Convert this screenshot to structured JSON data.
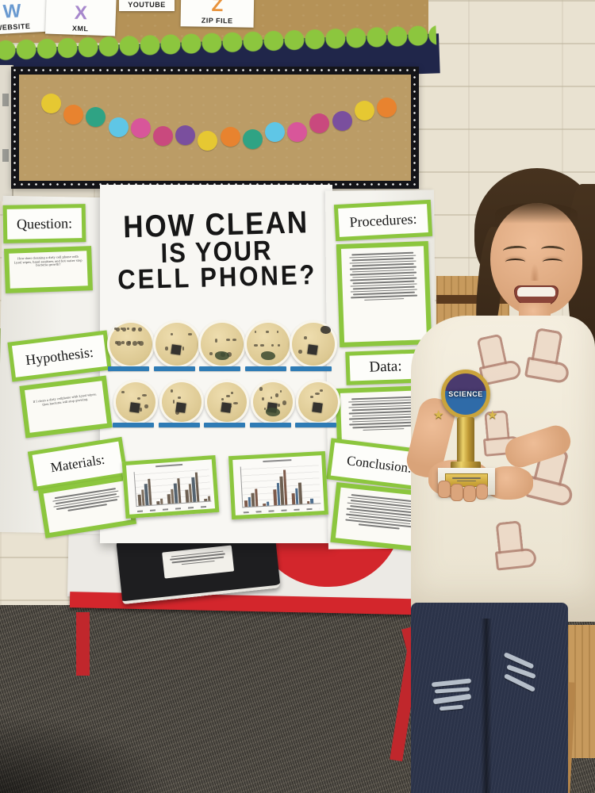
{
  "scene": {
    "description": "Smiling student holding a science trophy beside her tri-fold science fair board in a classroom",
    "setting": "classroom with bulletin boards, red-trimmed table, dark gray carpet"
  },
  "top_bulletin": {
    "posters": [
      {
        "label": "WEBSITE",
        "accent": "#6a9ad0"
      },
      {
        "label": "XML",
        "accent": "#a788cc"
      },
      {
        "label": "YOUTUBE",
        "accent": "#d8584a"
      },
      {
        "label": "ZIP FILE",
        "accent": "#e8923a"
      }
    ],
    "border_color": "#8cc63e",
    "band_color": "#20264a"
  },
  "dot_board": {
    "trim_color": "#d8437e",
    "garland_colors": [
      "#e6c832",
      "#e8832f",
      "#2fa384",
      "#5fc6e6",
      "#d8569a",
      "#c9497e",
      "#7a4f9e",
      "#e6c832",
      "#e8832f",
      "#2fa384",
      "#5fc6e6",
      "#d8569a",
      "#c9497e",
      "#7a4f9e",
      "#e6c832",
      "#e8832f"
    ]
  },
  "board": {
    "title_lines": [
      "HOW CLEAN",
      "IS YOUR",
      "CELL PHONE?"
    ],
    "frame_color": "#8cc63e",
    "sections": {
      "question": {
        "label": "Question:",
        "body": "How does cleaning a dirty cell phone with Lysol wipes, hand sanitizer, and hot water stop bacteria growth?"
      },
      "hypothesis": {
        "label": "Hypothesis:",
        "body": "If I clean a dirty cellphone with Lysol wipes, then bacteria will stop growing."
      },
      "materials": {
        "label": "Materials:",
        "note": "fine-print supply list (illegible in photo)"
      },
      "procedures": {
        "label": "Procedures:",
        "note": "fine-print numbered steps (illegible in photo)"
      },
      "data": {
        "label": "Data:",
        "note": "fine-print results paragraph (illegible in photo)"
      },
      "conclusion": {
        "label": "Conclusion:",
        "note": "fine-print conclusion paragraph (illegible in photo)"
      }
    },
    "petri": {
      "label_color": "#2e7bb5",
      "dishes": [
        {
          "speck": 16,
          "chip": false,
          "blob": null
        },
        {
          "speck": 4,
          "chip": true,
          "blob": null
        },
        {
          "speck": 6,
          "chip": false,
          "blob": "bottom"
        },
        {
          "speck": 7,
          "chip": false,
          "blob": "bottom"
        },
        {
          "speck": 3,
          "chip": true,
          "blob": "corner"
        },
        {
          "speck": 5,
          "chip": true,
          "blob": null
        },
        {
          "speck": 4,
          "chip": true,
          "blob": null
        },
        {
          "speck": 6,
          "chip": true,
          "blob": null
        },
        {
          "speck": 9,
          "chip": true,
          "blob": "bottom"
        },
        {
          "speck": 5,
          "chip": true,
          "blob": null
        }
      ]
    },
    "charts": [
      {
        "groups": [
          [
            14,
            20,
            27,
            33
          ],
          [
            4,
            7
          ],
          [
            12,
            18,
            25,
            31
          ],
          [
            16,
            23,
            31,
            37
          ],
          [
            3,
            6
          ]
        ],
        "bar_colors": [
          "#6e6052",
          "#7d6e5e",
          "#55636f"
        ]
      },
      {
        "groups": [
          [
            8,
            12,
            17,
            22
          ],
          [
            3,
            5
          ],
          [
            20,
            28,
            36,
            44
          ],
          [
            14,
            20,
            27
          ],
          [
            3,
            6
          ]
        ],
        "bar_colors": [
          "#7d5a4a",
          "#4e6e8e",
          "#6e6052"
        ]
      }
    ]
  },
  "trophy": {
    "medallion_text": "SCIENCE",
    "color": "#d4b44a",
    "base": "white marble base with engraved gold plate"
  },
  "notebook": {
    "type": "black composition notebook with white label"
  },
  "table": {
    "top_color": "#eceae5",
    "accent_color": "#d3262c"
  },
  "person": {
    "shirt": "cream tee with cowboy-boot print",
    "jeans": "dark ripped jeans",
    "hair": "brown"
  }
}
